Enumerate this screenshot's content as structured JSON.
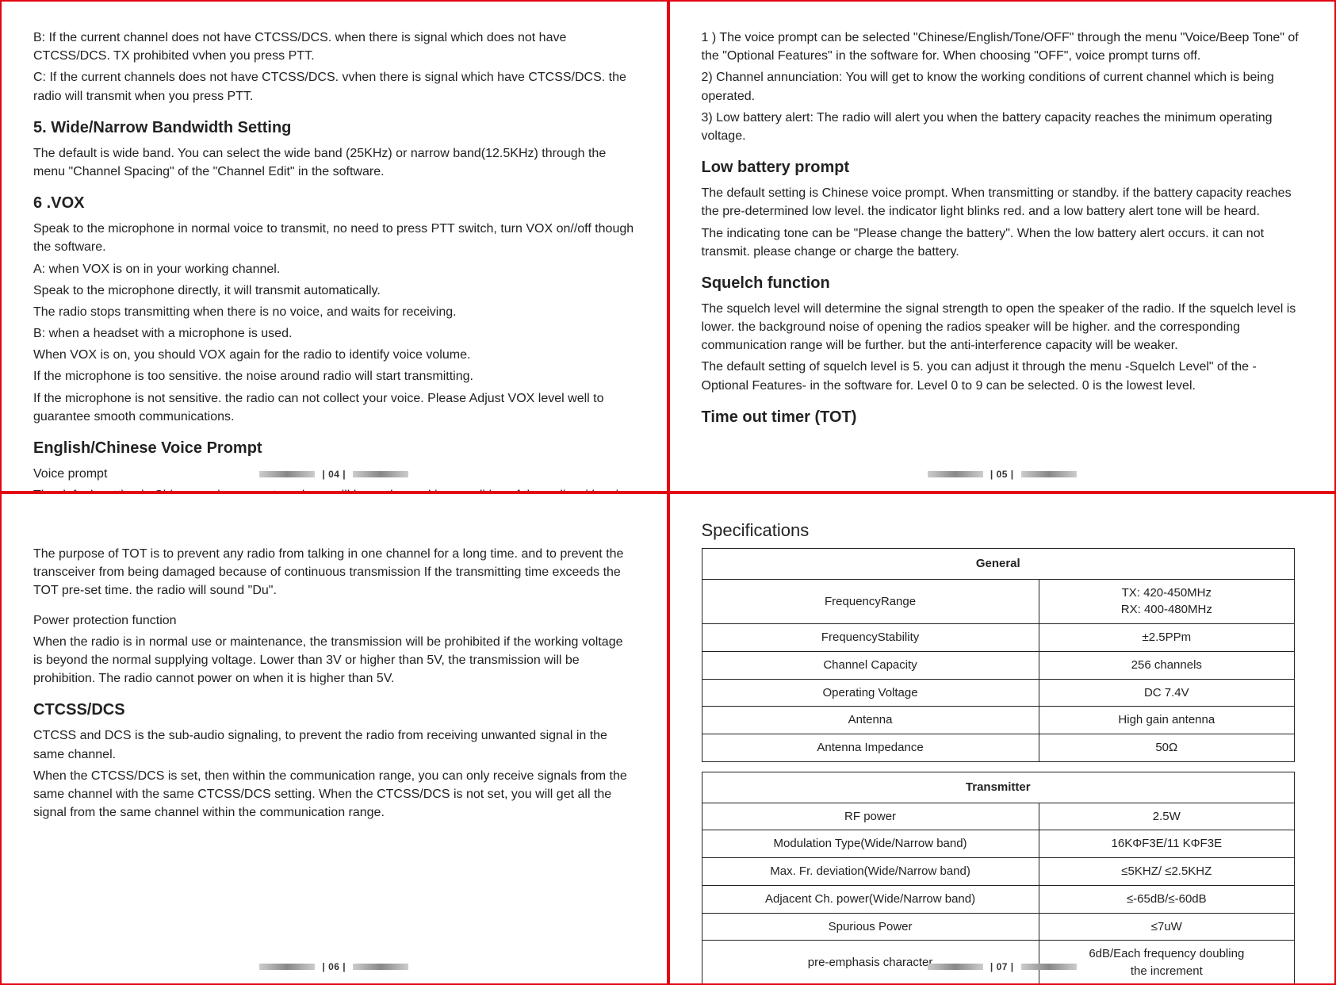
{
  "p04": {
    "b": "B:  If  the  current channel  does  not  have  CTCSS/DCS.  when  there  is  signal  which does  not have CTCSS/DCS. TX prohibited vvhen you press PTT.",
    "c": "C: If the current channels does not have CTCSS/DCS. vvhen there is signal  which have CTCSS/DCS. the radio  will transmit when you press PTT.",
    "h5": "5. Wide/Narrow Bandwidth Setting",
    "h5p": "The default is wide band. You can select the wide band (25KHz) or narrow band(12.5KHz) through the menu \"Channel Spacing\" of the \"Channel Edit\"  in the software.",
    "h6": "6 .VOX",
    "vox1": "Speak to the microphone in normal voice to transmit, no need to press PTT switch, turn VOX on//off though the software.",
    "vox2": "A: when VOX is on in your working channel.",
    "vox3": "Speak to the microphone directly, it will transmit automatically.",
    "vox4": "The radio stops transmitting when there is no voice, and waits for receiving.",
    "vox5": "B: when a headset with a microphone is used.",
    "vox6": "When VOX is on, you should VOX again for the radio to identify voice volume.",
    "vox7": "If the microphone is too sensitive. the noise around radio will start transmitting.",
    "vox8": "If the microphone is not sensitive. the radio can not collect your voice. Please Adjust VOX level well to guarantee smooth communications.",
    "hVoice": "English/Chinese Voice Prompt",
    "voice1": "Voice prompt",
    "voice2": "The default setting is Chinese voice prompt. and you will know the working condition of the radio with voice prompt.",
    "footer": "| 04 |"
  },
  "p05": {
    "l1": "1 ) The voice prompt can be selected \"Chinese/English/Tone/OFF\" through the menu \"Voice/Beep Tone\" of the \"Optional Features\" in the software for. When choosing \"OFF\", voice prompt turns off.",
    "l2": "2) Channel annunciation: You will get to know the working conditions of current channel which is being operated.",
    "l3": "3) Low battery alert: The radio will alert you when the battery capacity reaches the minimum operating voltage.",
    "hLow": "Low  battery  prompt",
    "low1": "The default setting is Chinese voice prompt. When transmitting or standby. if the battery capacity reaches the pre-determined low level. the indicator light blinks red. and a low battery alert tone will be heard.",
    "low2": "The indicating tone can be \"Please change the battery\". When the low battery alert occurs. it can not transmit. please change or charge the battery.",
    "hSq": "Squelch function",
    "sq1": "The squelch level will determine the signal strength to open the speaker of the radio. If the squelch level is lower. the background noise of opening the radios speaker will be higher. and the corresponding communication range will be further. but the anti-interference capacity will be weaker.",
    "sq2": "The default setting of squelch level is 5. you can adjust it through the menu -Squelch Level\" of the -Optional Features- in the software for. Level 0 to 9 can be selected. 0 is the  lowest level.",
    "hTot": "Time out timer (TOT)",
    "footer": "| 05 |"
  },
  "p06": {
    "t1": "The purpose of TOT is to prevent any radio from talking in one channel for a long time. and to prevent the transceiver from being damaged because of continuous transmission If the transmitting time exceeds the TOT pre-set time. the radio will sound \"Du\".",
    "t2a": "Power protection function",
    "t2b": "When the radio is in normal use or maintenance, the transmission will be prohibited if the working voltage is beyond the normal supplying voltage. Lower than 3V or higher than 5V, the transmission will be prohibition. The radio cannot power on when it is higher than 5V.",
    "hCt": "CTCSS/DCS",
    "ct1": "CTCSS and DCS is the sub-audio signaling, to prevent the radio from receiving unwanted signal in the same channel.",
    "ct2": "When the CTCSS/DCS is set, then within the communication range, you can only receive signals from the same channel with the same CTCSS/DCS setting. When the CTCSS/DCS is not set, you will get all the signal from the same channel within the communication range.",
    "footer": "| 06 |"
  },
  "p07": {
    "title": "Specifications",
    "general": "General",
    "transmitter": "Transmitter",
    "rows_general": [
      {
        "label": "FrequencyRange",
        "value": "TX: 420-450MHz\nRX: 400-480MHz"
      },
      {
        "label": "FrequencyStability",
        "value": "±2.5PPm"
      },
      {
        "label": "Channel Capacity",
        "value": "256 channels"
      },
      {
        "label": "Operating Voltage",
        "value": "DC 7.4V"
      },
      {
        "label": "Antenna",
        "value": "High gain antenna"
      },
      {
        "label": "Antenna Impedance",
        "value": "50Ω"
      }
    ],
    "rows_transmitter": [
      {
        "label": "RF power",
        "value": "2.5W"
      },
      {
        "label": "Modulation Type(Wide/Narrow band)",
        "value": "16KΦF3E/11 KΦF3E"
      },
      {
        "label": "Max. Fr. deviation(Wide/Narrow band)",
        "value": "≤5KHZ/ ≤2.5KHZ"
      },
      {
        "label": "Adjacent Ch. power(Wide/Narrow band)",
        "value": "≤-65dB/≤-60dB"
      },
      {
        "label": "Spurious Power",
        "value": "≤7uW"
      },
      {
        "label": "pre-emphasis character",
        "value": "6dB/Each frequency doubling\nthe increment"
      }
    ],
    "footer": "| 07 |"
  }
}
